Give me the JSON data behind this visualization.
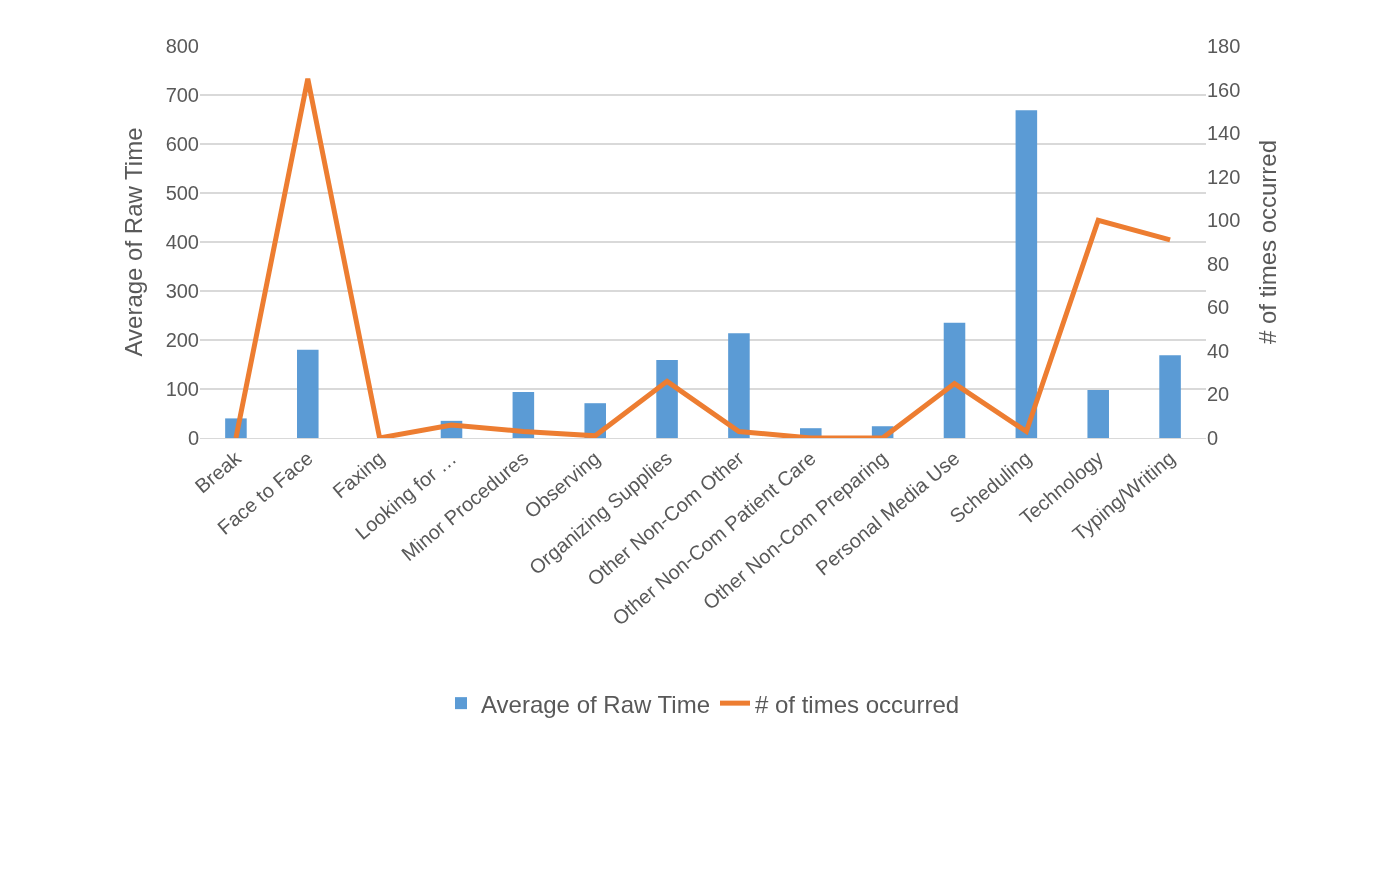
{
  "chart_data": {
    "type": "bar",
    "ylabel": "Average of Raw Time",
    "y2label": "# of times occurred",
    "categories": [
      "Break",
      "Face to Face",
      "Faxing",
      "Looking for …",
      "Minor Procedures",
      "Observing",
      "Organizing Supplies",
      "Other Non-Com Other",
      "Other Non-Com Patient Care",
      "Other Non-Com Preparing",
      "Personal Media Use",
      "Scheduling",
      "Technology",
      "Typing/Writing"
    ],
    "series": [
      {
        "name": "Average of Raw Time",
        "color": "#5b9bd5",
        "values": [
          40,
          180,
          0,
          35,
          94,
          71,
          159,
          214,
          20,
          24,
          235,
          669,
          98,
          169
        ]
      },
      {
        "name": "# of times occurred",
        "type": "line",
        "axis": "y2",
        "color": "#ed7d31",
        "values": [
          0,
          165,
          0,
          6,
          3,
          1,
          26,
          3,
          0,
          0,
          25,
          3,
          100,
          91
        ]
      }
    ],
    "ylim": [
      0,
      800
    ],
    "yticks": [
      0,
      100,
      200,
      300,
      400,
      500,
      600,
      700,
      800
    ],
    "y2lim": [
      0,
      180
    ],
    "y2ticks": [
      0,
      20,
      40,
      60,
      80,
      100,
      120,
      140,
      160,
      180
    ],
    "grid": "y",
    "legend": "bottom",
    "marker": "none",
    "line_style": "solid"
  }
}
